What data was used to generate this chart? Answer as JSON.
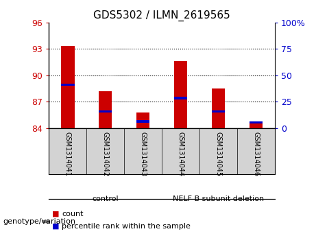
{
  "title": "GDS5302 / ILMN_2619565",
  "samples": [
    "GSM1314041",
    "GSM1314042",
    "GSM1314043",
    "GSM1314044",
    "GSM1314045",
    "GSM1314046"
  ],
  "count_values": [
    93.35,
    88.2,
    85.75,
    91.65,
    88.5,
    84.8
  ],
  "percentile_values": [
    88.8,
    85.75,
    84.65,
    87.3,
    85.75,
    84.55
  ],
  "ymin": 84,
  "ymax": 96,
  "yticks_left": [
    84,
    87,
    90,
    93,
    96
  ],
  "yticks_right": [
    0,
    25,
    50,
    75,
    100
  ],
  "bar_color": "#CC0000",
  "percentile_color": "#0000CC",
  "bar_width": 0.35,
  "bg_color": "#FFFFFF",
  "left_tick_color": "#CC0000",
  "right_tick_color": "#0000CC",
  "genotype_label": "genotype/variation",
  "group1_name": "control",
  "group2_name": "NELF B subunit deletion",
  "group_color": "#90EE90",
  "sample_label_bg": "#D3D3D3",
  "legend_count": "count",
  "legend_percentile": "percentile rank within the sample"
}
